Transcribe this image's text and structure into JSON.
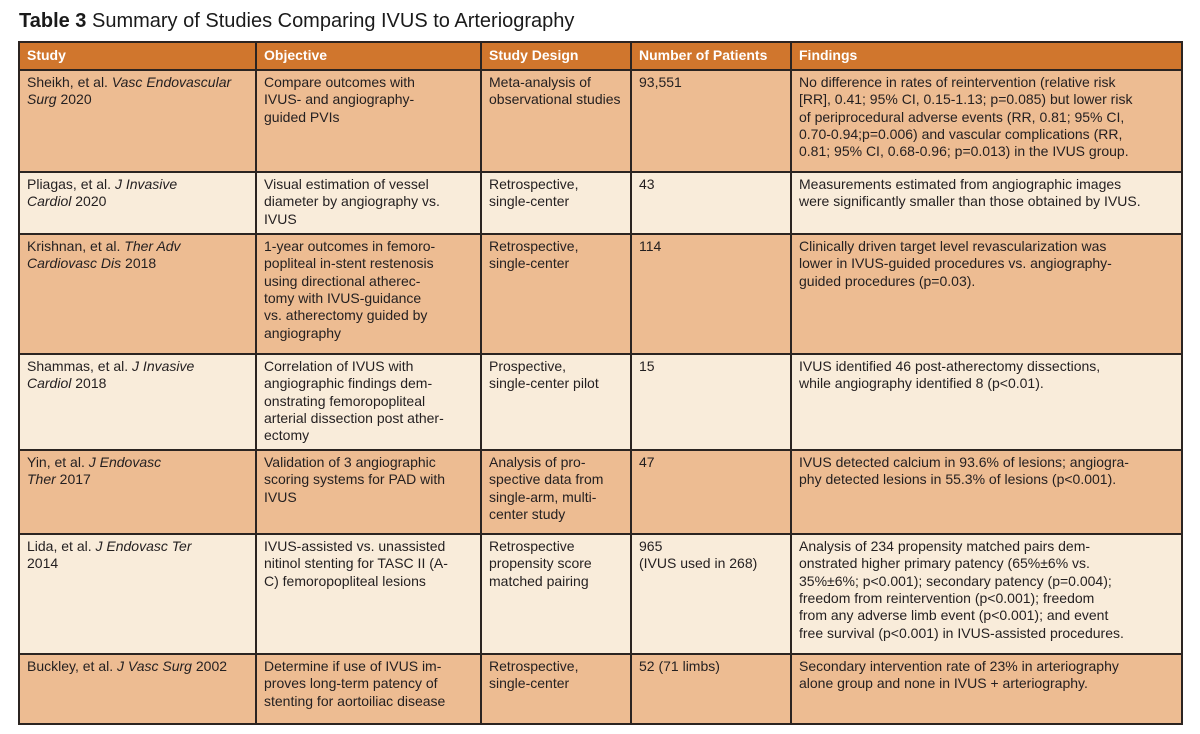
{
  "title": {
    "label": "Table 3",
    "caption": " Summary of Studies Comparing IVUS to Arteriography"
  },
  "colors": {
    "header_bg": "#d0762d",
    "row_odd_bg": "#edbc92",
    "row_even_bg": "#f9ecda",
    "border": "#2b2421",
    "header_text": "#ffffff",
    "body_text": "#231f20"
  },
  "table": {
    "headers": [
      "Study",
      "Objective",
      "Study Design",
      "Number of Patients",
      "Findings"
    ],
    "rows": [
      {
        "study": {
          "prefix": "Sheikh, et al. ",
          "journal": "Vasc Endovascular\nSurg",
          "year": " 2020"
        },
        "objective": "Compare outcomes with\nIVUS- and angiography-\nguided PVIs",
        "design": "Meta-analysis of\nobservational studies",
        "patients": "93,551",
        "findings": "No difference in rates of reintervention (relative risk\n[RR], 0.41; 95% CI, 0.15-1.13; p=0.085) but lower risk\nof periprocedural adverse events (RR, 0.81; 95% CI,\n0.70-0.94;p=0.006) and vascular complications (RR,\n0.81; 95% CI, 0.68-0.96; p=0.013) in the IVUS group."
      },
      {
        "study": {
          "prefix": "Pliagas, et al. ",
          "journal": "J Invasive\nCardiol",
          "year": " 2020"
        },
        "objective": "Visual estimation of vessel\ndiameter by angiography vs.\nIVUS",
        "design": "Retrospective,\nsingle-center",
        "patients": "43",
        "findings": "Measurements estimated from angiographic images\nwere significantly smaller than those obtained by IVUS."
      },
      {
        "study": {
          "prefix": "Krishnan, et al. ",
          "journal": "Ther Adv\nCardiovasc Dis",
          "year": " 2018"
        },
        "objective": "1-year outcomes in femoro-\npopliteal in-stent restenosis\nusing directional atherec-\ntomy with IVUS-guidance\nvs. atherectomy guided by\nangiography",
        "design": "Retrospective,\nsingle-center",
        "patients": "114",
        "findings": "Clinically driven target level revascularization was\nlower in IVUS-guided procedures vs. angiography-\nguided procedures (p=0.03)."
      },
      {
        "study": {
          "prefix": "Shammas, et al. ",
          "journal": "J Invasive\nCardiol",
          "year": " 2018"
        },
        "objective": "Correlation of IVUS with\nangiographic findings dem-\nonstrating femoropopliteal\narterial dissection post ather-\nectomy",
        "design": "Prospective,\nsingle-center pilot",
        "patients": "15",
        "findings": "IVUS identified 46 post-atherectomy dissections,\nwhile angiography identified 8 (p<0.01)."
      },
      {
        "study": {
          "prefix": "Yin, et al. ",
          "journal": "J Endovasc\nTher",
          "year": " 2017"
        },
        "objective": "Validation of 3 angiographic\nscoring systems for PAD with\nIVUS",
        "design": "Analysis of pro-\nspective data from\nsingle-arm, multi-\ncenter study",
        "patients": "47",
        "findings": "IVUS detected calcium in 93.6% of lesions; angiogra-\nphy detected lesions in 55.3% of lesions (p<0.001)."
      },
      {
        "study": {
          "prefix": "Lida, et al. ",
          "journal": "J Endovasc Ter",
          "year": "\n2014"
        },
        "objective": "IVUS-assisted vs. unassisted\nnitinol stenting for TASC II (A-\nC) femoropopliteal lesions",
        "design": "Retrospective\npropensity score\nmatched pairing",
        "patients": "965\n(IVUS used in 268)",
        "findings": "Analysis of 234 propensity matched pairs dem-\nonstrated higher primary patency (65%±6% vs.\n35%±6%; p<0.001); secondary patency (p=0.004);\nfreedom from reintervention (p<0.001); freedom\nfrom any adverse limb event (p<0.001); and event\nfree survival (p<0.001) in IVUS-assisted procedures."
      },
      {
        "study": {
          "prefix": "Buckley, et al. ",
          "journal": "J Vasc Surg",
          "year": " 2002"
        },
        "objective": "Determine if use of IVUS im-\nproves long-term patency of\nstenting for aortoiliac disease",
        "design": "Retrospective,\nsingle-center",
        "patients": "52 (71 limbs)",
        "findings": "Secondary intervention rate of 23% in arteriography\nalone group and none in IVUS + arteriography."
      }
    ]
  }
}
